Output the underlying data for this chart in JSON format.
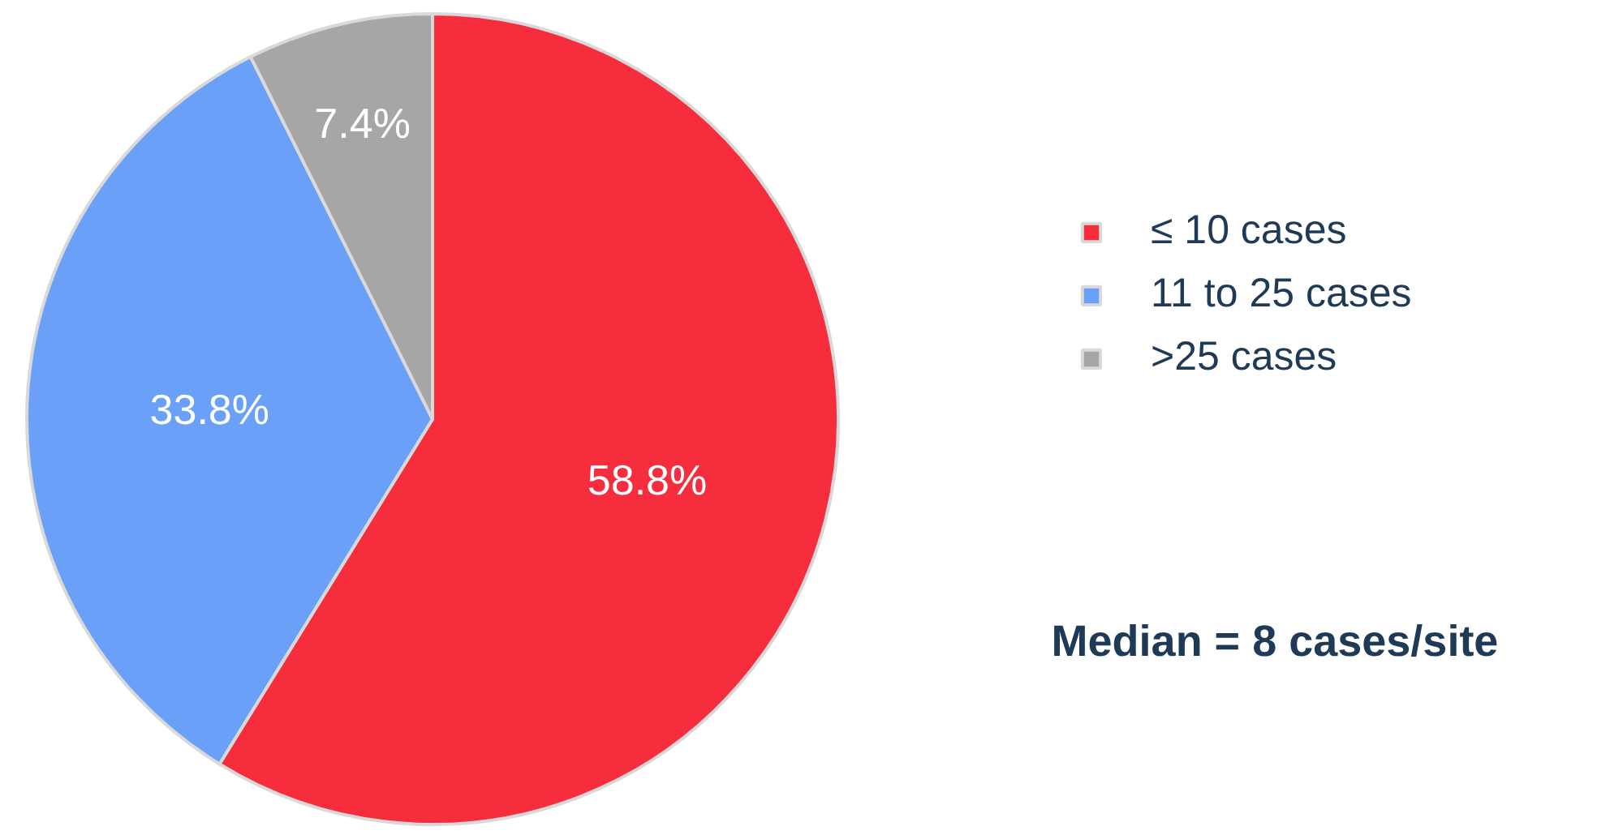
{
  "chart_data": {
    "type": "pie",
    "categories": [
      "≤ 10 cases",
      "11 to 25 cases",
      ">25 cases"
    ],
    "values": [
      58.8,
      33.8,
      7.4
    ],
    "colors": [
      "#f62d3d",
      "#6aa0f8",
      "#a6a6a6"
    ],
    "value_labels": [
      "58.8%",
      "33.8%",
      "7.4%"
    ],
    "legend": "right",
    "annotations": [
      "Median = 8 cases/site"
    ]
  }
}
